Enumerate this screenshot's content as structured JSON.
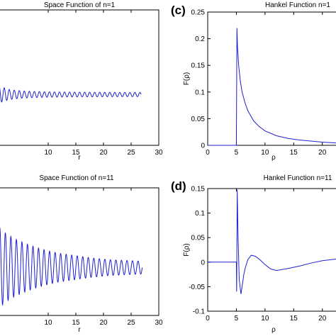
{
  "chart_data": [
    {
      "panel": "top-left",
      "type": "line",
      "title": "Space Function of n=1",
      "xlabel": "r",
      "ylabel": "",
      "xlim": [
        0,
        30
      ],
      "ylim": [
        -0.6,
        1.0
      ],
      "xticks": [
        "10",
        "15",
        "20",
        "25",
        "30"
      ],
      "yticks": [],
      "grid": false,
      "series": [
        {
          "color": "#1f1fd0",
          "x": [
            0,
            1,
            2,
            3,
            4,
            5,
            6,
            8,
            10,
            12,
            15,
            18,
            21,
            24,
            26.8
          ],
          "y": [
            0.12,
            0.1,
            0.08,
            0.06,
            0.05,
            0.045,
            0.04,
            0.035,
            0.032,
            0.03,
            0.028,
            0.027,
            0.026,
            0.025,
            0.025
          ]
        }
      ]
    },
    {
      "panel": "top-right",
      "label": "(c)",
      "type": "line",
      "title": "Hankel Function n=1",
      "xlabel": "ρ",
      "ylabel": "F(ρ)",
      "xlim": [
        0,
        23
      ],
      "ylim": [
        0,
        0.25
      ],
      "xticks": [
        "0",
        "5",
        "10",
        "15",
        "20"
      ],
      "yticks": [
        "0",
        "0.05",
        "0.1",
        "0.15",
        "0.2",
        "0.25"
      ],
      "grid": false,
      "series": [
        {
          "color": "#1f1fd0",
          "x": [
            0,
            4.9,
            5.0,
            5.05,
            5.1,
            5.2,
            5.4,
            5.7,
            6.0,
            6.5,
            7.0,
            8.0,
            9.0,
            10.0,
            12.0,
            14.0,
            16.0,
            18.0,
            20.0,
            23.0
          ],
          "y": [
            0,
            0,
            0,
            0.11,
            0.22,
            0.185,
            0.15,
            0.12,
            0.1,
            0.08,
            0.065,
            0.046,
            0.035,
            0.027,
            0.018,
            0.013,
            0.01,
            0.008,
            0.006,
            0.004
          ]
        }
      ]
    },
    {
      "panel": "bottom-left",
      "type": "line",
      "title": "Space Function of n=11",
      "xlabel": "r",
      "ylabel": "",
      "xlim": [
        0,
        30
      ],
      "ylim": [
        -0.6,
        1.0
      ],
      "xticks": [
        "10",
        "15",
        "20",
        "25",
        "30"
      ],
      "yticks": [],
      "grid": false,
      "series": [
        {
          "color": "#1f1fd0",
          "x": [
            0,
            1,
            2,
            3,
            4,
            5,
            6,
            8,
            10,
            12,
            15,
            18,
            21,
            24,
            27
          ],
          "y": [
            0.6,
            0.52,
            0.45,
            0.4,
            0.36,
            0.33,
            0.3,
            0.25,
            0.21,
            0.18,
            0.15,
            0.12,
            0.1,
            0.09,
            0.08
          ]
        }
      ]
    },
    {
      "panel": "bottom-right",
      "label": "(d)",
      "type": "line",
      "title": "Hankel Function n=11",
      "xlabel": "ρ",
      "ylabel": "F(ρ)",
      "xlim": [
        0,
        23
      ],
      "ylim": [
        -0.1,
        0.15
      ],
      "xticks": [
        "0",
        "5",
        "10",
        "15",
        "20"
      ],
      "yticks": [
        "-0.1",
        "-0.05",
        "0",
        "0.05",
        "0.1",
        "0.15"
      ],
      "grid": false,
      "series": [
        {
          "color": "#1f1fd0",
          "x": [
            0,
            4.9,
            5.0,
            5.05,
            5.15,
            5.3,
            5.5,
            5.8,
            6.0,
            6.3,
            6.6,
            7.0,
            7.6,
            8.3,
            9.0,
            10.0,
            11.0,
            12.0,
            14.0,
            16.0,
            18.0,
            20.0,
            23.0
          ],
          "y": [
            0,
            0,
            0,
            -0.06,
            0.148,
            0.05,
            -0.035,
            -0.065,
            -0.05,
            -0.025,
            -0.01,
            0.005,
            0.014,
            0.012,
            0.006,
            -0.005,
            -0.014,
            -0.017,
            -0.013,
            -0.008,
            -0.002,
            0.003,
            0.007
          ]
        }
      ]
    }
  ]
}
